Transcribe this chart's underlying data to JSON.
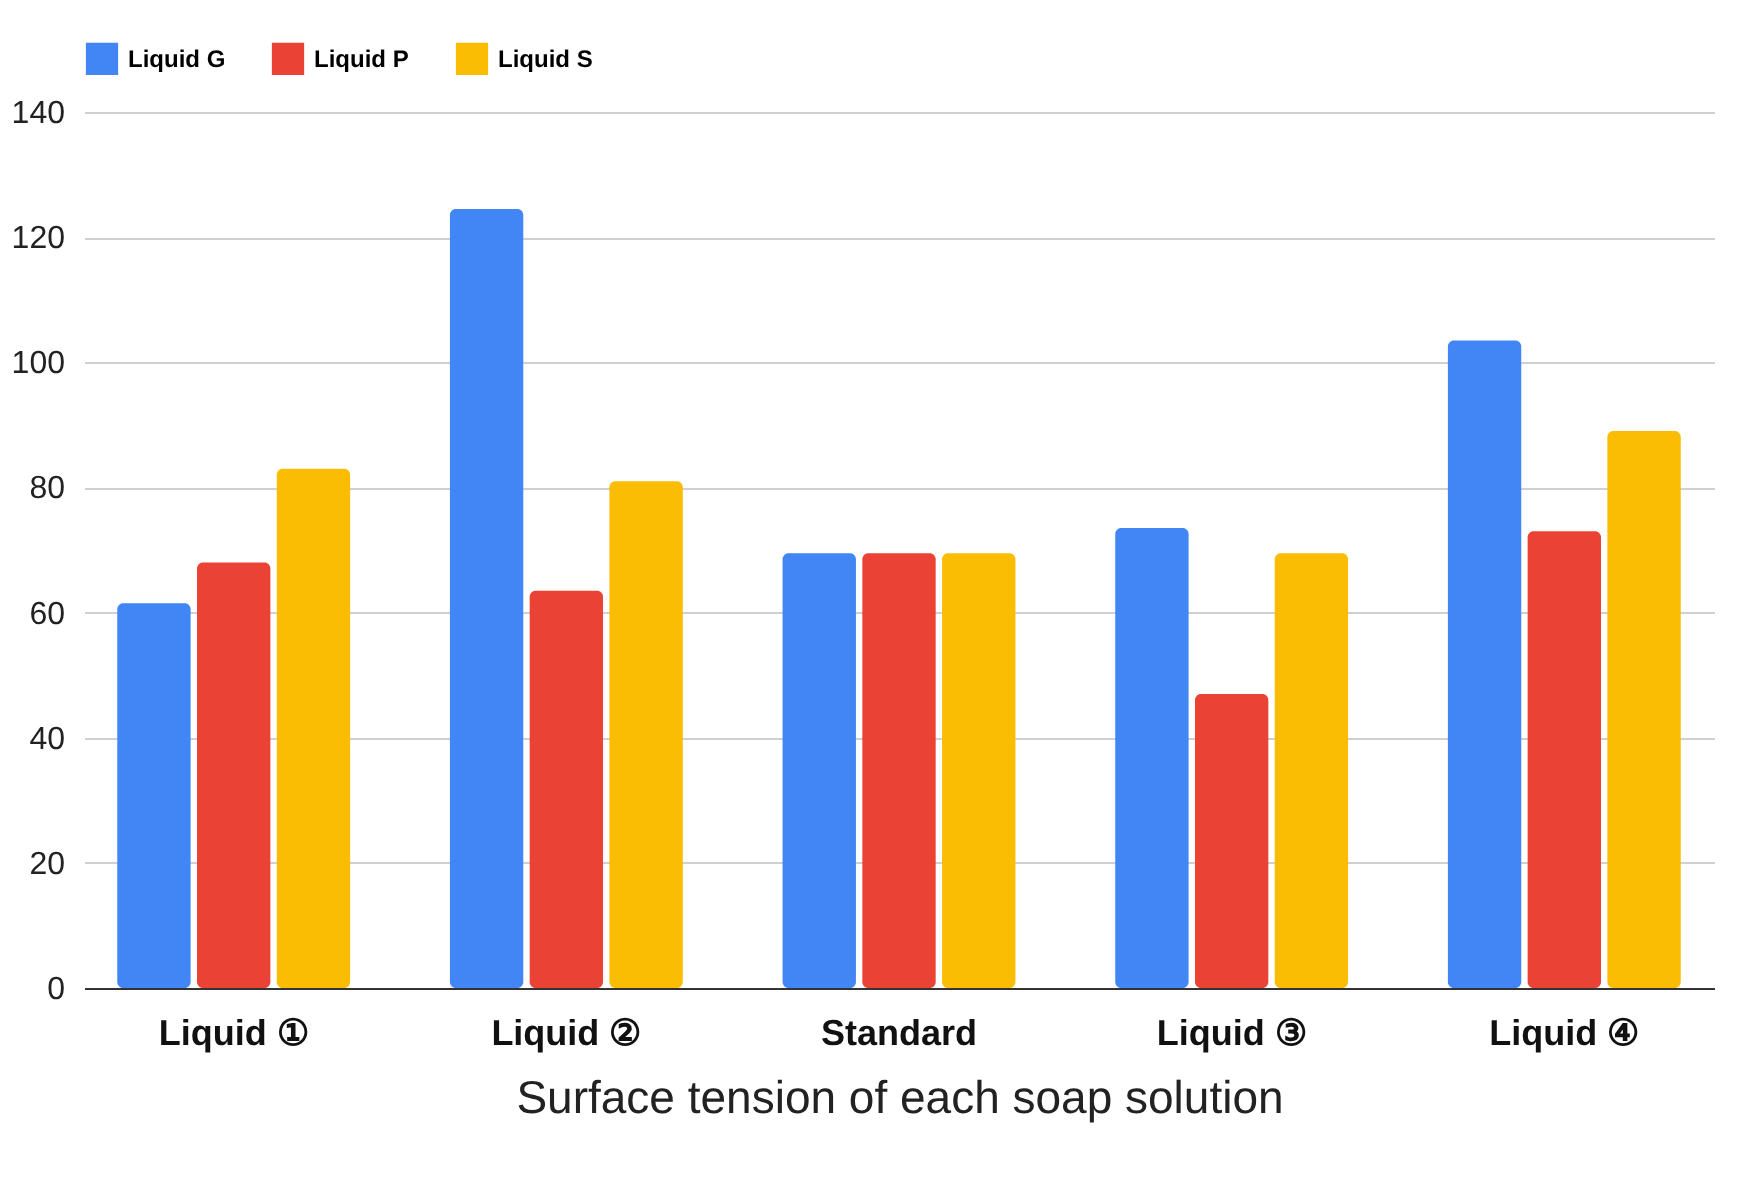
{
  "chart_data": {
    "type": "bar",
    "xlabel": "Surface tension of each soap solution",
    "categories": [
      "Liquid ①",
      "Liquid ②",
      "Standard",
      "Liquid ③",
      "Liquid ④"
    ],
    "series": [
      {
        "name": "Liquid G",
        "color": "#4285f4",
        "values": [
          61.5,
          124.5,
          69.5,
          73.5,
          103.5
        ]
      },
      {
        "name": "Liquid P",
        "color": "#ea4335",
        "values": [
          68,
          63.5,
          69.5,
          47,
          73
        ]
      },
      {
        "name": "Liquid S",
        "color": "#fbbc04",
        "values": [
          83,
          81,
          69.5,
          69.5,
          89
        ]
      }
    ],
    "ylim": [
      0,
      140
    ],
    "yticks": [
      0,
      20,
      40,
      60,
      80,
      100,
      120,
      140
    ],
    "grid": "y",
    "legend": "top"
  }
}
